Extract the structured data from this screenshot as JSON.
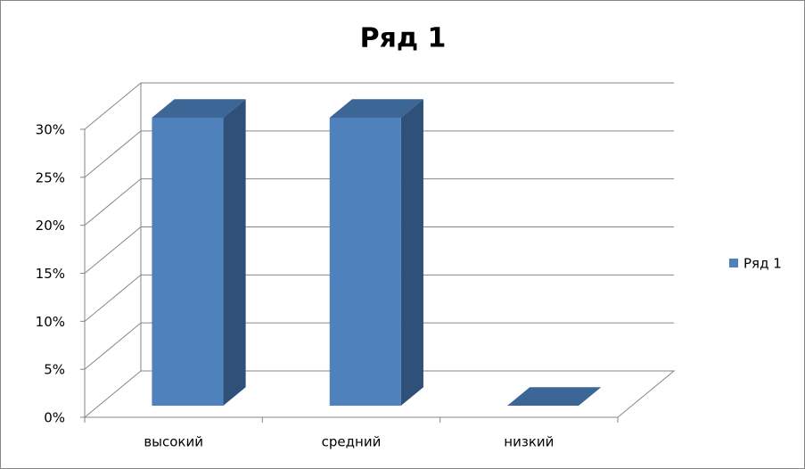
{
  "chart_data": {
    "type": "bar",
    "title": "Ряд 1",
    "categories": [
      "высокий",
      "средний",
      "низкий"
    ],
    "series": [
      {
        "name": "Ряд 1",
        "color": "#4f81bd",
        "values": [
          30,
          30,
          0
        ]
      }
    ],
    "ylim": [
      0,
      30
    ],
    "yticks": [
      {
        "value": 0,
        "label": "0%"
      },
      {
        "value": 5,
        "label": "5%"
      },
      {
        "value": 10,
        "label": "10%"
      },
      {
        "value": 15,
        "label": "15%"
      },
      {
        "value": 20,
        "label": "20%"
      },
      {
        "value": 25,
        "label": "25%"
      },
      {
        "value": 30,
        "label": "30%"
      }
    ],
    "grid": true,
    "legend": "right"
  }
}
